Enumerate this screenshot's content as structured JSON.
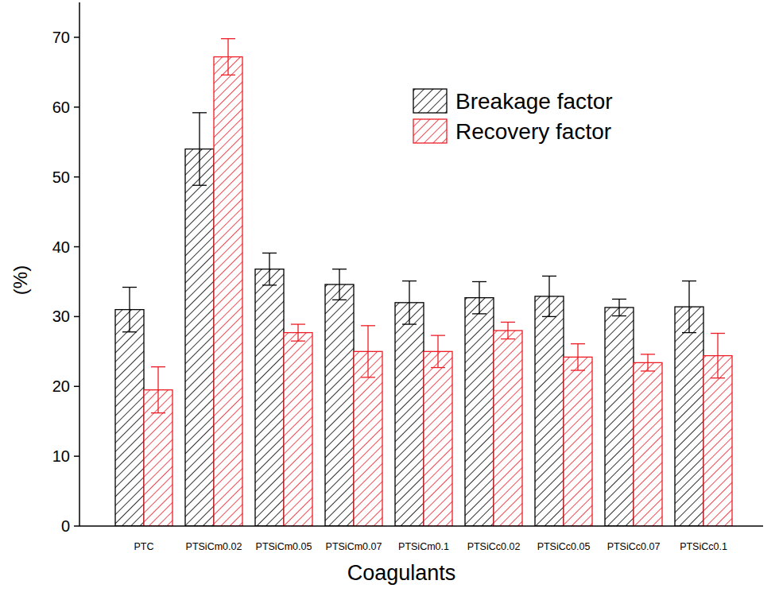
{
  "chart_data": {
    "type": "bar",
    "x_label": "Coagulants",
    "y_label": "(%)",
    "categories": [
      "PTC",
      "PTSiCm0.02",
      "PTSiCm0.05",
      "PTSiCm0.07",
      "PTSiCm0.1",
      "PTSiCc0.02",
      "PTSiCc0.05",
      "PTSiCc0.07",
      "PTSiCc0.1"
    ],
    "series": [
      {
        "name": "Breakage factor",
        "color": "#000000",
        "values": [
          31.0,
          54.0,
          36.8,
          34.6,
          32.0,
          32.7,
          32.9,
          31.3,
          31.4
        ],
        "errors": [
          3.2,
          5.2,
          2.3,
          2.2,
          3.1,
          2.3,
          2.9,
          1.2,
          3.7
        ]
      },
      {
        "name": "Recovery factor",
        "color": "#ee1c25",
        "values": [
          19.5,
          67.2,
          27.7,
          25.0,
          25.0,
          28.0,
          24.2,
          23.4,
          24.4
        ],
        "errors": [
          3.3,
          2.6,
          1.2,
          3.7,
          2.3,
          1.2,
          1.9,
          1.2,
          3.2
        ]
      }
    ],
    "ylim": [
      0,
      75
    ],
    "yticks": [
      0,
      10,
      20,
      30,
      40,
      50,
      60,
      70
    ],
    "grid": false,
    "legend": "upper-right"
  }
}
